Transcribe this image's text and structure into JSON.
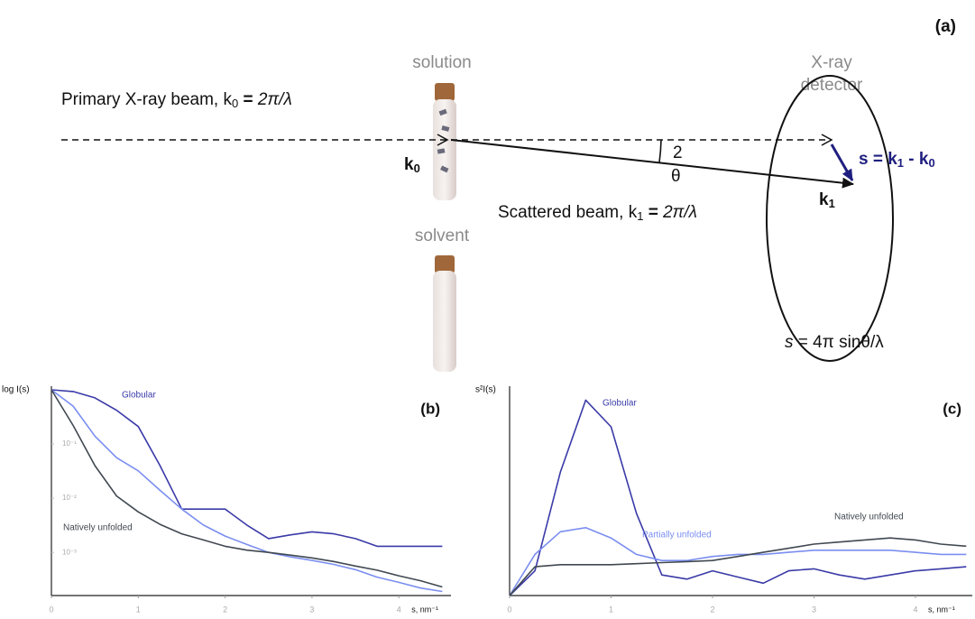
{
  "diagram": {
    "panel_label": "(a)",
    "solution": "solution",
    "solvent": "solvent",
    "detector": [
      "X-ray",
      "detector"
    ],
    "primary_beam": [
      "Primary X-ray beam, k",
      "0",
      " = ",
      "2π/λ"
    ],
    "k0": [
      "k",
      "0"
    ],
    "angle": [
      "2",
      "θ"
    ],
    "s_vector": [
      "s = k",
      "1",
      " - k",
      "0"
    ],
    "k1": [
      "k",
      "1"
    ],
    "scattered_beam": [
      "Scattered beam, k",
      "1",
      " = ",
      "2π/λ"
    ],
    "formula": [
      "s",
      " = 4π sinθ/λ"
    ]
  },
  "chart_data": [
    {
      "type": "line",
      "panel_label": "(b)",
      "y_label": "log I(s)",
      "x_label": "s, nm⁻¹",
      "log_y": true,
      "x": [
        0,
        0.25,
        0.5,
        0.75,
        1,
        1.25,
        1.5,
        1.75,
        2,
        2.25,
        2.5,
        2.75,
        3,
        3.25,
        3.5,
        3.75,
        4,
        4.25,
        4.5
      ],
      "xlim": [
        0,
        4.6
      ],
      "xticks": [
        0,
        1,
        2,
        3,
        4
      ],
      "ylim": [
        0.00016,
        1
      ],
      "yticks": [
        {
          "value": 0.1,
          "label": "10⁻¹"
        },
        {
          "value": 0.01,
          "label": "10⁻²"
        },
        {
          "value": 0.001,
          "label": "10⁻³"
        }
      ],
      "series": [
        {
          "name": "Globular",
          "color": "#3a3aa8",
          "values": [
            1,
            0.93,
            0.71,
            0.42,
            0.21,
            0.04,
            0.0063,
            0.0063,
            0.0063,
            0.0032,
            0.0018,
            0.0021,
            0.0024,
            0.0022,
            0.0018,
            0.0013,
            0.0013,
            0.0013,
            0.0013
          ]
        },
        {
          "color": "#7b8ef0",
          "values": [
            1,
            0.5,
            0.14,
            0.056,
            0.032,
            0.014,
            0.0063,
            0.0032,
            0.002,
            0.0014,
            0.001,
            0.00083,
            0.00071,
            0.0006,
            0.00048,
            0.00035,
            0.00028,
            0.00022,
            0.00019
          ]
        },
        {
          "name": "Natively unfolded",
          "color": "#404850",
          "values": [
            1,
            0.22,
            0.04,
            0.011,
            0.0056,
            0.0033,
            0.0022,
            0.0017,
            0.0013,
            0.0011,
            0.001,
            0.00089,
            0.00079,
            0.00068,
            0.00056,
            0.00047,
            0.00037,
            0.0003,
            0.00023
          ]
        }
      ]
    },
    {
      "type": "line",
      "panel_label": "(c)",
      "y_label": "s²I(s)",
      "x_label": "s, nm⁻¹",
      "log_y": false,
      "x": [
        0,
        0.25,
        0.5,
        0.75,
        1,
        1.25,
        1.5,
        1.75,
        2,
        2.25,
        2.5,
        2.75,
        3,
        3.25,
        3.5,
        3.75,
        4,
        4.25,
        4.5
      ],
      "xlim": [
        0,
        4.56
      ],
      "xticks": [
        0,
        1,
        2,
        3,
        4
      ],
      "ylim": [
        0,
        1
      ],
      "series": [
        {
          "name": "Globular",
          "color": "#3a3aa8",
          "values": [
            0,
            0.12,
            0.6,
            0.95,
            0.82,
            0.4,
            0.1,
            0.08,
            0.12,
            0.09,
            0.06,
            0.12,
            0.13,
            0.1,
            0.08,
            0.1,
            0.12,
            0.13,
            0.14
          ]
        },
        {
          "name": "Partially unfolded",
          "color": "#7b8ef0",
          "values": [
            0,
            0.2,
            0.31,
            0.33,
            0.28,
            0.2,
            0.17,
            0.17,
            0.19,
            0.2,
            0.2,
            0.21,
            0.22,
            0.22,
            0.22,
            0.22,
            0.21,
            0.2,
            0.2
          ]
        },
        {
          "name": "Natively unfolded",
          "color": "#404850",
          "values": [
            0,
            0.14,
            0.15,
            0.15,
            0.15,
            0.155,
            0.16,
            0.165,
            0.17,
            0.19,
            0.21,
            0.23,
            0.25,
            0.26,
            0.27,
            0.28,
            0.27,
            0.25,
            0.24
          ]
        }
      ]
    }
  ]
}
